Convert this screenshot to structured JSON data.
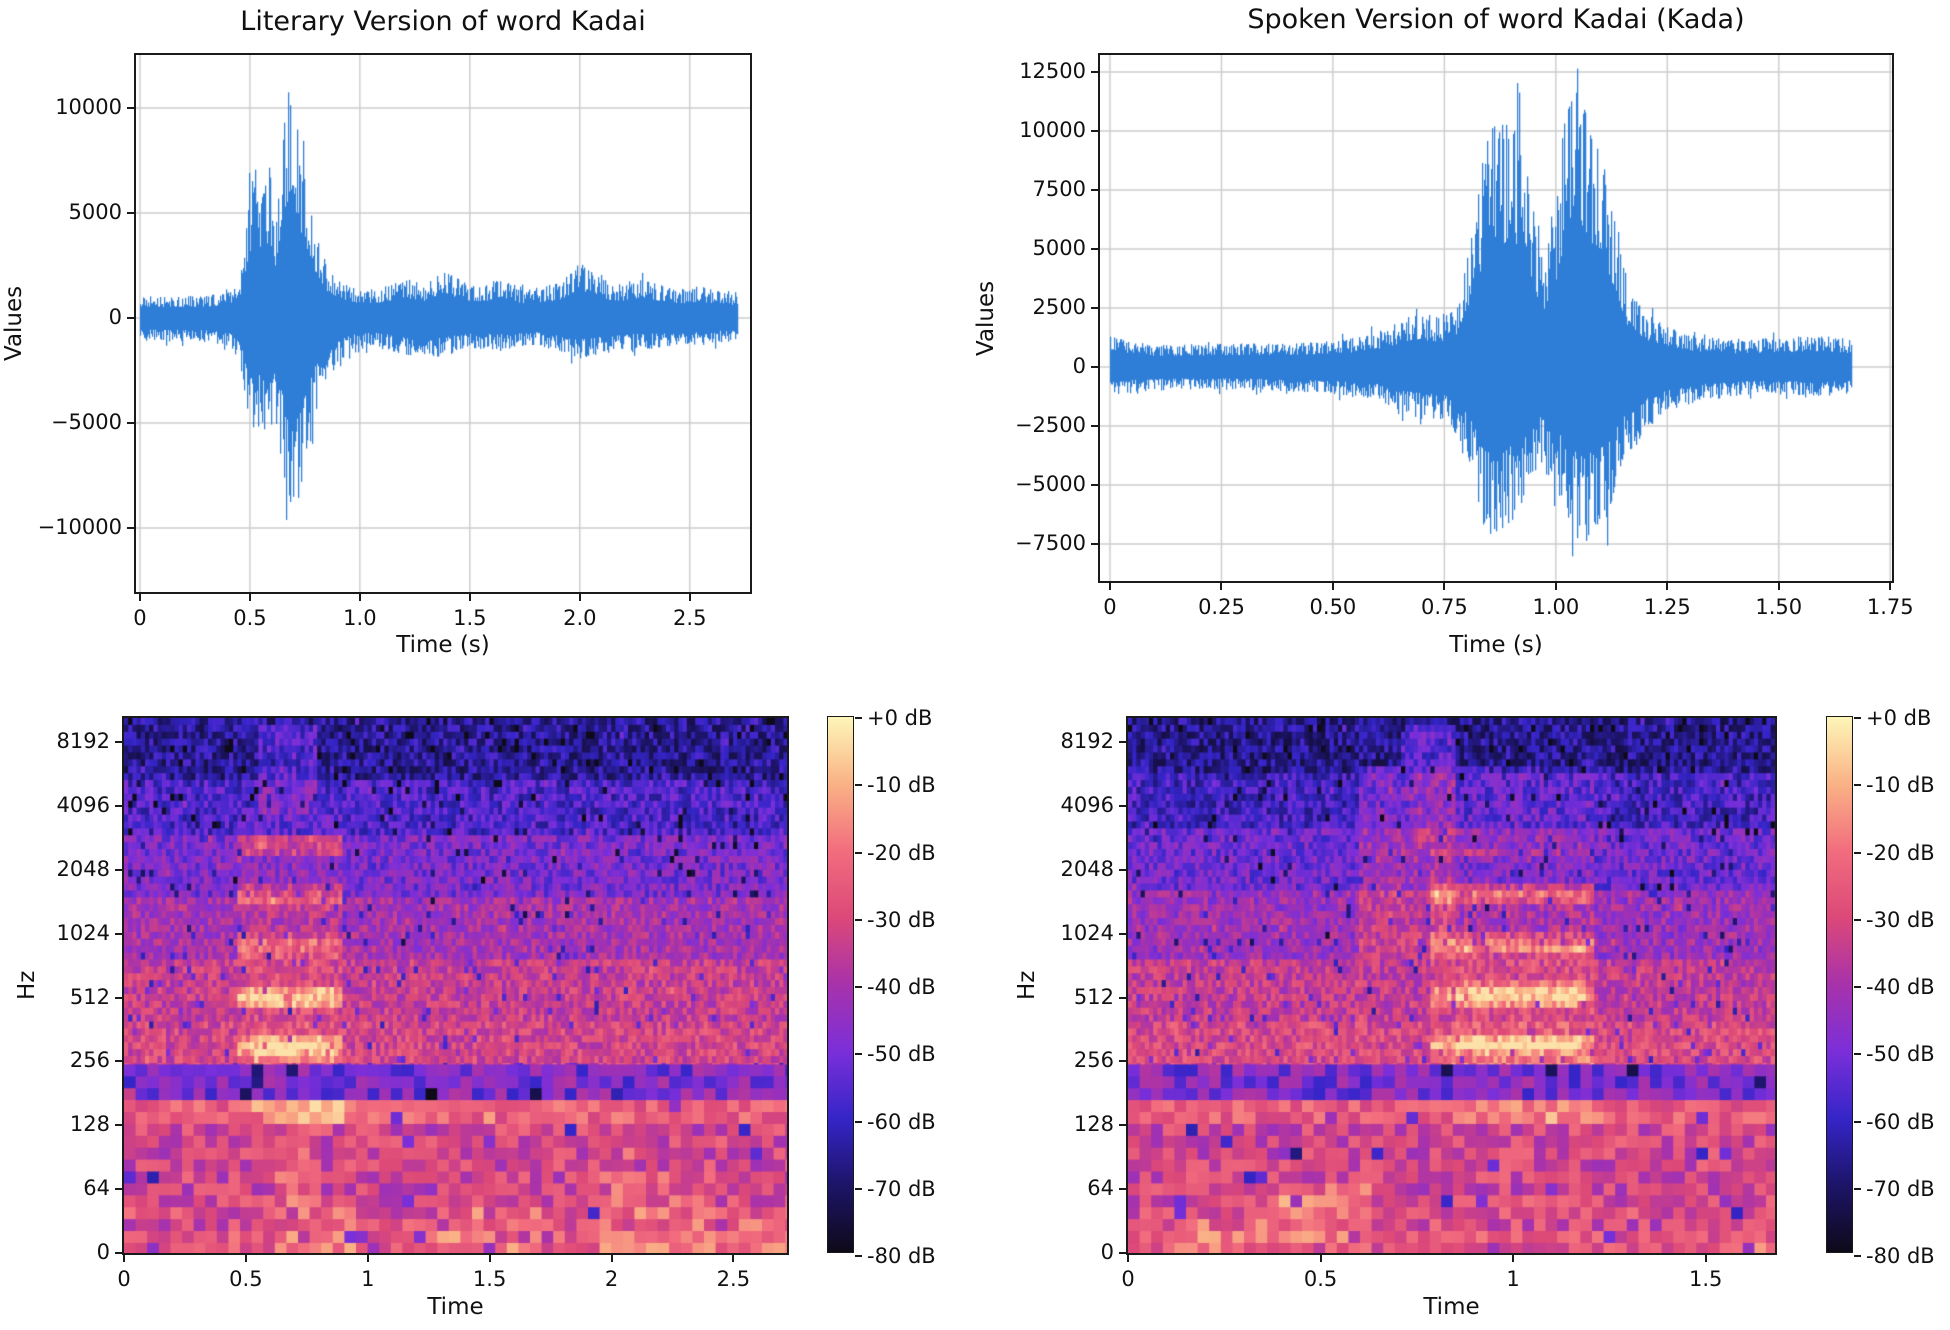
{
  "figure": {
    "background": "#ffffff",
    "waveform_color": "#2e7ed8",
    "axis_color": "#1a1a1a",
    "grid_color": "#cccccc",
    "text_color": "#111111",
    "colormap_db": [
      -80,
      -70,
      -60,
      -50,
      -40,
      -30,
      -20,
      -10,
      0
    ],
    "colormap_colors": [
      "#0e0a18",
      "#1d1468",
      "#3525c8",
      "#7b2fd9",
      "#a832ab",
      "#dc4878",
      "#f26d7e",
      "#fab285",
      "#fdf6b8"
    ]
  },
  "chart_data": [
    {
      "type": "line",
      "subtype": "audio-waveform",
      "title": "Literary Version of word Kadai",
      "xlabel": "Time (s)",
      "ylabel": "Values",
      "duration_s": 2.72,
      "xlim": [
        -0.018,
        2.774
      ],
      "ylim": [
        -13048,
        12524
      ],
      "xticks": [
        0,
        0.5,
        1,
        1.5,
        2,
        2.5
      ],
      "xtick_labels": [
        "0",
        "0.5",
        "1.0",
        "1.5",
        "2.0",
        "2.5"
      ],
      "yticks": [
        10000,
        5000,
        0,
        -5000,
        -10000
      ],
      "ytick_labels": [
        "10000",
        "5000",
        "0",
        "−5000",
        "−10000"
      ],
      "grid": true,
      "peak_value": 11500,
      "peak_time_s": 0.68,
      "min_value": -9800,
      "min_time_s": 0.7,
      "amplitude_envelope_pos": [
        [
          0,
          1050
        ],
        [
          0.3,
          1050
        ],
        [
          0.42,
          1300
        ],
        [
          0.46,
          2300
        ],
        [
          0.49,
          5400
        ],
        [
          0.52,
          7600
        ],
        [
          0.555,
          6300
        ],
        [
          0.59,
          7400
        ],
        [
          0.62,
          4600
        ],
        [
          0.645,
          8600
        ],
        [
          0.665,
          10600
        ],
        [
          0.68,
          11500
        ],
        [
          0.7,
          10600
        ],
        [
          0.72,
          9200
        ],
        [
          0.75,
          7000
        ],
        [
          0.78,
          5200
        ],
        [
          0.81,
          3700
        ],
        [
          0.85,
          2600
        ],
        [
          0.9,
          1950
        ],
        [
          0.95,
          1550
        ],
        [
          1.0,
          1300
        ],
        [
          1.1,
          1450
        ],
        [
          1.2,
          1950
        ],
        [
          1.3,
          1550
        ],
        [
          1.38,
          2450
        ],
        [
          1.45,
          1850
        ],
        [
          1.55,
          1450
        ],
        [
          1.63,
          1950
        ],
        [
          1.75,
          1350
        ],
        [
          1.9,
          1650
        ],
        [
          2.0,
          2600
        ],
        [
          2.08,
          2250
        ],
        [
          2.15,
          1550
        ],
        [
          2.3,
          1850
        ],
        [
          2.45,
          1350
        ],
        [
          2.55,
          1550
        ],
        [
          2.65,
          1250
        ],
        [
          2.72,
          1250
        ]
      ],
      "amplitude_envelope_neg": [
        [
          0,
          1100
        ],
        [
          0.3,
          1150
        ],
        [
          0.42,
          1400
        ],
        [
          0.46,
          2600
        ],
        [
          0.5,
          5800
        ],
        [
          0.54,
          5300
        ],
        [
          0.58,
          6100
        ],
        [
          0.62,
          5100
        ],
        [
          0.65,
          7400
        ],
        [
          0.68,
          9100
        ],
        [
          0.7,
          9800
        ],
        [
          0.73,
          8500
        ],
        [
          0.76,
          6700
        ],
        [
          0.8,
          4500
        ],
        [
          0.84,
          3100
        ],
        [
          0.9,
          2150
        ],
        [
          0.95,
          1650
        ],
        [
          1.05,
          1350
        ],
        [
          1.2,
          1750
        ],
        [
          1.35,
          1950
        ],
        [
          1.5,
          1450
        ],
        [
          1.65,
          1550
        ],
        [
          1.8,
          1350
        ],
        [
          2.0,
          1950
        ],
        [
          2.2,
          1550
        ],
        [
          2.4,
          1450
        ],
        [
          2.6,
          1250
        ],
        [
          2.72,
          1150
        ]
      ]
    },
    {
      "type": "line",
      "subtype": "audio-waveform",
      "title": "Spoken Version of word Kadai (Kada)",
      "xlabel": "Time (s)",
      "ylabel": "Values",
      "duration_s": 1.665,
      "xlim": [
        -0.0224,
        1.7539
      ],
      "ylim": [
        -9068,
        13220
      ],
      "xticks": [
        0,
        0.25,
        0.5,
        0.75,
        1,
        1.25,
        1.5,
        1.75
      ],
      "xtick_labels": [
        "0",
        "0.25",
        "0.50",
        "0.75",
        "1.00",
        "1.25",
        "1.50",
        "1.75"
      ],
      "yticks": [
        12500,
        10000,
        7500,
        5000,
        2500,
        0,
        -2500,
        -5000,
        -7500
      ],
      "ytick_labels": [
        "12500",
        "10000",
        "7500",
        "5000",
        "2500",
        "0",
        "−2500",
        "−5000",
        "−7500"
      ],
      "grid": true,
      "peak_value": 12400,
      "peak_time_s": 1.045,
      "min_value": -7500,
      "min_time_s": 1.06,
      "amplitude_envelope_pos": [
        [
          0,
          1500
        ],
        [
          0.04,
          1150
        ],
        [
          0.1,
          950
        ],
        [
          0.3,
          1000
        ],
        [
          0.45,
          1050
        ],
        [
          0.55,
          1250
        ],
        [
          0.62,
          1650
        ],
        [
          0.68,
          2350
        ],
        [
          0.74,
          2150
        ],
        [
          0.78,
          2700
        ],
        [
          0.82,
          6500
        ],
        [
          0.855,
          11500
        ],
        [
          0.88,
          10300
        ],
        [
          0.91,
          10500
        ],
        [
          0.94,
          8200
        ],
        [
          0.97,
          4600
        ],
        [
          1.0,
          6600
        ],
        [
          1.02,
          11000
        ],
        [
          1.045,
          12400
        ],
        [
          1.07,
          11300
        ],
        [
          1.1,
          9200
        ],
        [
          1.13,
          6900
        ],
        [
          1.16,
          3600
        ],
        [
          1.2,
          2300
        ],
        [
          1.25,
          1750
        ],
        [
          1.3,
          1350
        ],
        [
          1.4,
          1150
        ],
        [
          1.5,
          1250
        ],
        [
          1.6,
          1350
        ],
        [
          1.665,
          1150
        ]
      ],
      "amplitude_envelope_neg": [
        [
          0,
          1300
        ],
        [
          0.05,
          1100
        ],
        [
          0.15,
          950
        ],
        [
          0.35,
          1000
        ],
        [
          0.5,
          1150
        ],
        [
          0.6,
          1450
        ],
        [
          0.68,
          2150
        ],
        [
          0.75,
          2350
        ],
        [
          0.8,
          3600
        ],
        [
          0.84,
          6900
        ],
        [
          0.87,
          7300
        ],
        [
          0.9,
          6600
        ],
        [
          0.93,
          5700
        ],
        [
          0.96,
          4100
        ],
        [
          1.0,
          5100
        ],
        [
          1.03,
          6900
        ],
        [
          1.06,
          7500
        ],
        [
          1.09,
          7100
        ],
        [
          1.12,
          6300
        ],
        [
          1.15,
          4300
        ],
        [
          1.2,
          2700
        ],
        [
          1.26,
          1850
        ],
        [
          1.32,
          1450
        ],
        [
          1.45,
          1150
        ],
        [
          1.6,
          1250
        ],
        [
          1.665,
          1050
        ]
      ]
    },
    {
      "type": "heatmap",
      "subtype": "spectrogram",
      "xlabel": "Time",
      "ylabel": "Hz",
      "duration_s": 2.72,
      "xticks": [
        0,
        0.5,
        1,
        1.5,
        2,
        2.5
      ],
      "xtick_labels": [
        "0",
        "0.5",
        "1",
        "1.5",
        "2",
        "2.5"
      ],
      "ytick_labels": [
        "0",
        "64",
        "128",
        "256",
        "512",
        "1024",
        "2048",
        "4096",
        "8192"
      ],
      "colorbar_labels": [
        "+0 dB",
        "-10 dB",
        "-20 dB",
        "-30 dB",
        "-40 dB",
        "-50 dB",
        "-60 dB",
        "-70 dB",
        "-80 dB"
      ],
      "db_range": [
        -80,
        0
      ],
      "u_max": 8.37,
      "bands": [
        {
          "u0": 0,
          "u1": 0.4,
          "db": -26,
          "noise": 9
        },
        {
          "u0": 0.4,
          "u1": 1.0,
          "db": -30,
          "noise": 11
        },
        {
          "u0": 1.0,
          "u1": 2.0,
          "db": -32,
          "noise": 11
        },
        {
          "u0": 2.0,
          "u1": 2.4,
          "db": -24,
          "noise": 8
        },
        {
          "u0": 2.4,
          "u1": 2.95,
          "db": -49,
          "noise": 11
        },
        {
          "u0": 2.95,
          "u1": 3.65,
          "db": -31,
          "noise": 9
        },
        {
          "u0": 3.65,
          "u1": 4.6,
          "db": -34,
          "noise": 9
        },
        {
          "u0": 4.6,
          "u1": 5.6,
          "db": -41,
          "noise": 9
        },
        {
          "u0": 5.6,
          "u1": 6.6,
          "db": -49,
          "noise": 9
        },
        {
          "u0": 6.6,
          "u1": 7.4,
          "db": -57,
          "noise": 9
        },
        {
          "u0": 7.4,
          "u1": 8.37,
          "db": -65,
          "noise": 9
        }
      ],
      "features": [
        {
          "t0": 0.46,
          "t1": 0.9,
          "u0": 2.95,
          "u1": 6.9,
          "db": 16,
          "banded": true,
          "phase": 0.5
        },
        {
          "t0": 0.5,
          "t1": 0.88,
          "u0": 2.02,
          "u1": 2.4,
          "db": 13
        },
        {
          "t0": 0.52,
          "t1": 0.86,
          "u0": 2.95,
          "u1": 4.7,
          "db": 7,
          "banded": true,
          "phase": 0.5
        },
        {
          "t0": 0.55,
          "t1": 0.8,
          "u0": 6.9,
          "u1": 8.25,
          "db": 9
        },
        {
          "t0": 0.6,
          "t1": 0.95,
          "u0": 0,
          "u1": 1.0,
          "db": 8
        },
        {
          "t0": 0.62,
          "t1": 0.8,
          "u0": 1.0,
          "u1": 2.0,
          "db": 6
        },
        {
          "t0": 1.28,
          "t1": 1.7,
          "u0": 0,
          "u1": 0.8,
          "db": 7
        },
        {
          "t0": 1.9,
          "t1": 2.4,
          "u0": 0,
          "u1": 1.2,
          "db": 7
        },
        {
          "t0": 2.45,
          "t1": 2.72,
          "u0": 0,
          "u1": 0.6,
          "db": 5
        }
      ]
    },
    {
      "type": "heatmap",
      "subtype": "spectrogram",
      "xlabel": "Time",
      "ylabel": "Hz",
      "duration_s": 1.68,
      "xticks": [
        0,
        0.5,
        1,
        1.5
      ],
      "xtick_labels": [
        "0",
        "0.5",
        "1",
        "1.5"
      ],
      "ytick_labels": [
        "0",
        "64",
        "128",
        "256",
        "512",
        "1024",
        "2048",
        "4096",
        "8192"
      ],
      "colorbar_labels": [
        "+0 dB",
        "-10 dB",
        "-20 dB",
        "-30 dB",
        "-40 dB",
        "-50 dB",
        "-60 dB",
        "-70 dB",
        "-80 dB"
      ],
      "db_range": [
        -80,
        0
      ],
      "u_max": 8.37,
      "bands": [
        {
          "u0": 0,
          "u1": 0.4,
          "db": -27,
          "noise": 9
        },
        {
          "u0": 0.4,
          "u1": 1.0,
          "db": -30,
          "noise": 11
        },
        {
          "u0": 1.0,
          "u1": 2.0,
          "db": -32,
          "noise": 11
        },
        {
          "u0": 2.0,
          "u1": 2.4,
          "db": -25,
          "noise": 8
        },
        {
          "u0": 2.4,
          "u1": 2.95,
          "db": -49,
          "noise": 11
        },
        {
          "u0": 2.95,
          "u1": 3.7,
          "db": -30,
          "noise": 9
        },
        {
          "u0": 3.7,
          "u1": 4.7,
          "db": -35,
          "noise": 9
        },
        {
          "u0": 4.7,
          "u1": 5.7,
          "db": -43,
          "noise": 9
        },
        {
          "u0": 5.7,
          "u1": 6.7,
          "db": -51,
          "noise": 9
        },
        {
          "u0": 6.7,
          "u1": 7.5,
          "db": -59,
          "noise": 9
        },
        {
          "u0": 7.5,
          "u1": 8.37,
          "db": -66,
          "noise": 9
        }
      ],
      "features": [
        {
          "t0": 0.78,
          "t1": 1.2,
          "u0": 2.95,
          "u1": 6.3,
          "db": 16,
          "banded": true,
          "phase": 0.2
        },
        {
          "t0": 0.85,
          "t1": 1.18,
          "u0": 3.3,
          "u1": 4.9,
          "db": 8,
          "banded": true,
          "phase": 0.2
        },
        {
          "t0": 0.83,
          "t1": 1.2,
          "u0": 2.95,
          "u1": 3.2,
          "db": 8
        },
        {
          "t0": 0.6,
          "t1": 0.85,
          "u0": 4.7,
          "u1": 7.6,
          "db": 9
        },
        {
          "t0": 0.7,
          "t1": 0.84,
          "u0": 7.6,
          "u1": 8.3,
          "db": 11
        },
        {
          "t0": 0.73,
          "t1": 1.25,
          "u0": 6.3,
          "u1": 7.6,
          "db": 6
        },
        {
          "t0": 0.4,
          "t1": 0.62,
          "u0": 0.2,
          "u1": 1.1,
          "db": 10
        },
        {
          "t0": 0.1,
          "t1": 0.35,
          "u0": 0,
          "u1": 0.6,
          "db": 7
        },
        {
          "t0": 0.85,
          "t1": 1.22,
          "u0": 2.0,
          "u1": 2.4,
          "db": 6
        }
      ]
    }
  ]
}
